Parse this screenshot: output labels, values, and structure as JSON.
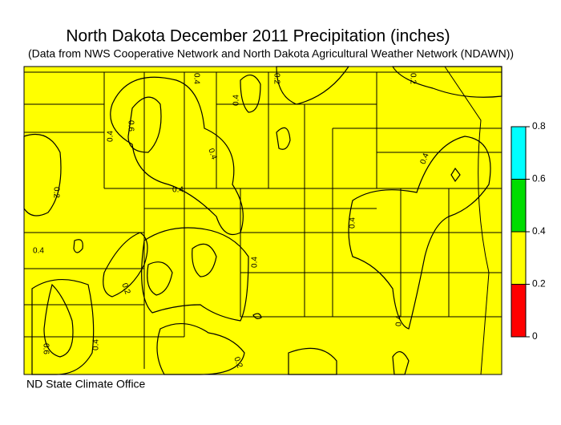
{
  "header": {
    "title": "North Dakota December 2011 Precipitation (inches)",
    "subtitle": "(Data from NWS Cooperative Network and North Dakota Agricultural Weather Network (NDAWN))"
  },
  "legend": {
    "ticks": [
      0,
      0.2,
      0.4,
      0.6,
      0.8
    ],
    "colors": [
      "#ff0000",
      "#ffff00",
      "#00dd00",
      "#00ffff"
    ]
  },
  "contour_labels": [
    0.4,
    0.4,
    0.2,
    0.2,
    0.6,
    0.4,
    0.4,
    0.2,
    0.4,
    0.4,
    0.6,
    0.4,
    0.4,
    0.4,
    0.4,
    0.2,
    0.4,
    0.2
  ],
  "footer": "ND State Climate Office"
}
